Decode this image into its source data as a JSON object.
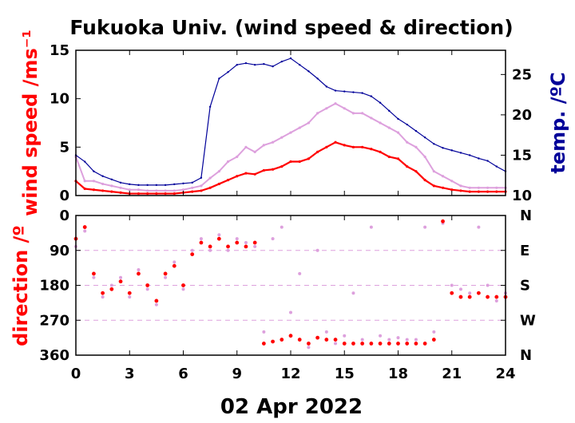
{
  "chart_data": [
    {
      "type": "line",
      "title": "Fukuoka Univ. (wind speed & direction)",
      "ylabel": "wind speed /ms⁻¹",
      "y2label": "temp. /ºC",
      "xlim": [
        0,
        24
      ],
      "ylim": [
        0,
        15
      ],
      "y2lim": [
        10,
        28
      ],
      "xticks": [
        0,
        3,
        6,
        9,
        12,
        15,
        18,
        21,
        24
      ],
      "yticks": [
        0,
        5,
        10,
        15
      ],
      "y2ticks": [
        10,
        15,
        20,
        25
      ],
      "colors": {
        "wind_mean": "#ff0000",
        "gust": "#dda0dd",
        "temperature": "#000099"
      },
      "x": [
        0,
        0.5,
        1,
        1.5,
        2,
        2.5,
        3,
        3.5,
        4,
        4.5,
        5,
        5.5,
        6,
        6.5,
        7,
        7.5,
        8,
        8.5,
        9,
        9.5,
        10,
        10.5,
        11,
        11.5,
        12,
        12.5,
        13,
        13.5,
        14,
        14.5,
        15,
        15.5,
        16,
        16.5,
        17,
        17.5,
        18,
        18.5,
        19,
        19.5,
        20,
        20.5,
        21,
        21.5,
        22,
        22.5,
        23,
        23.5,
        24
      ],
      "series": [
        {
          "key": "temperature",
          "axis": "y2",
          "values": [
            15.0,
            14.2,
            13.0,
            12.4,
            12.0,
            11.6,
            11.4,
            11.3,
            11.3,
            11.3,
            11.3,
            11.4,
            11.5,
            11.6,
            12.2,
            21.0,
            24.5,
            25.3,
            26.2,
            26.4,
            26.2,
            26.3,
            26.0,
            26.6,
            27.0,
            26.2,
            25.4,
            24.5,
            23.5,
            23.0,
            22.9,
            22.8,
            22.7,
            22.3,
            21.5,
            20.5,
            19.5,
            18.8,
            18.0,
            17.2,
            16.4,
            15.9,
            15.6,
            15.3,
            15.0,
            14.6,
            14.3,
            13.6,
            13.0
          ]
        },
        {
          "key": "gust",
          "axis": "y",
          "values": [
            4.0,
            1.5,
            1.5,
            1.2,
            1.0,
            0.8,
            0.6,
            0.6,
            0.5,
            0.5,
            0.5,
            0.5,
            0.6,
            0.8,
            1.0,
            1.8,
            2.5,
            3.5,
            4.0,
            5.0,
            4.5,
            5.2,
            5.5,
            6.0,
            6.5,
            7.0,
            7.5,
            8.5,
            9.0,
            9.5,
            9.0,
            8.5,
            8.5,
            8.0,
            7.5,
            7.0,
            6.5,
            5.5,
            5.0,
            4.0,
            2.5,
            2.0,
            1.5,
            1.0,
            0.8,
            0.8,
            0.8,
            0.8,
            0.8
          ]
        },
        {
          "key": "wind_mean",
          "axis": "y",
          "values": [
            1.5,
            0.7,
            0.6,
            0.5,
            0.4,
            0.3,
            0.2,
            0.2,
            0.2,
            0.2,
            0.2,
            0.2,
            0.3,
            0.4,
            0.5,
            0.8,
            1.2,
            1.6,
            2.0,
            2.3,
            2.2,
            2.6,
            2.7,
            3.0,
            3.5,
            3.5,
            3.8,
            4.5,
            5.0,
            5.5,
            5.2,
            5.0,
            5.0,
            4.8,
            4.5,
            4.0,
            3.8,
            3.0,
            2.5,
            1.6,
            1.0,
            0.8,
            0.6,
            0.5,
            0.4,
            0.4,
            0.4,
            0.4,
            0.4
          ]
        }
      ]
    },
    {
      "type": "scatter",
      "ylabel": "direction /º",
      "xlabel": "02 Apr 2022",
      "xlim": [
        0,
        24
      ],
      "ylim": [
        0,
        360
      ],
      "xticks": [
        0,
        3,
        6,
        9,
        12,
        15,
        18,
        21,
        24
      ],
      "yticks": [
        0,
        90,
        180,
        270,
        360
      ],
      "y2ticks": [
        "N",
        "E",
        "S",
        "W",
        "N"
      ],
      "colors": {
        "wind_mean": "#ff0000",
        "gust": "#dda0dd"
      },
      "x": [
        0,
        0.5,
        1,
        1.5,
        2,
        2.5,
        3,
        3.5,
        4,
        4.5,
        5,
        5.5,
        6,
        6.5,
        7,
        7.5,
        8,
        8.5,
        9,
        9.5,
        10,
        10.5,
        11,
        11.5,
        12,
        12.5,
        13,
        13.5,
        14,
        14.5,
        15,
        15.5,
        16,
        16.5,
        17,
        17.5,
        18,
        18.5,
        19,
        19.5,
        20,
        20.5,
        21,
        21.5,
        22,
        22.5,
        23,
        23.5,
        24
      ],
      "series": [
        {
          "key": "wind_mean",
          "values": [
            60,
            30,
            150,
            200,
            190,
            170,
            200,
            150,
            180,
            220,
            150,
            130,
            180,
            100,
            70,
            80,
            60,
            80,
            70,
            80,
            70,
            330,
            325,
            320,
            310,
            320,
            330,
            315,
            320,
            320,
            330,
            330,
            330,
            330,
            330,
            330,
            330,
            330,
            330,
            330,
            320,
            15,
            200,
            210,
            210,
            200,
            210,
            210,
            210
          ]
        },
        {
          "key": "gust",
          "values": [
            80,
            40,
            160,
            210,
            180,
            160,
            210,
            140,
            190,
            230,
            160,
            120,
            190,
            90,
            60,
            90,
            50,
            90,
            60,
            70,
            80,
            300,
            60,
            30,
            250,
            150,
            340,
            90,
            300,
            330,
            310,
            200,
            320,
            30,
            310,
            320,
            315,
            320,
            320,
            30,
            300,
            20,
            180,
            190,
            200,
            30,
            180,
            220,
            200
          ]
        }
      ]
    }
  ]
}
